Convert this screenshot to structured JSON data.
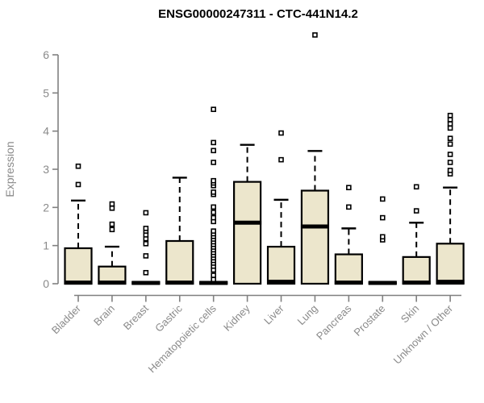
{
  "chart_data": {
    "type": "boxplot",
    "title": "ENSG00000247311 - CTC-441N14.2",
    "xlabel": "",
    "ylabel": "Expression",
    "ylim": [
      0,
      6
    ],
    "yticks": [
      0,
      1,
      2,
      3,
      4,
      5,
      6
    ],
    "grid": false,
    "legend": "none",
    "categories": [
      "Bladder",
      "Brain",
      "Breast",
      "Gastric",
      "Hematopoietic cells",
      "Kidney",
      "Liver",
      "Lung",
      "Pancreas",
      "Prostate",
      "Skin",
      "Unknown / Other"
    ],
    "series": [
      {
        "name": "Bladder",
        "q1": 0,
        "median": 0.03,
        "q3": 0.93,
        "whisker_low": 0,
        "whisker_high": 2.18,
        "outliers": [
          2.6,
          3.08
        ]
      },
      {
        "name": "Brain",
        "q1": 0,
        "median": 0.03,
        "q3": 0.45,
        "whisker_low": 0,
        "whisker_high": 0.97,
        "outliers": [
          1.42,
          1.56,
          1.98,
          2.09
        ]
      },
      {
        "name": "Breast",
        "q1": 0,
        "median": 0.02,
        "q3": 0.04,
        "whisker_low": 0,
        "whisker_high": 0.04,
        "outliers": [
          0.29,
          0.73,
          1.05,
          1.18,
          1.28,
          1.38,
          1.45,
          1.86
        ]
      },
      {
        "name": "Gastric",
        "q1": 0,
        "median": 0.03,
        "q3": 1.12,
        "whisker_low": 0,
        "whisker_high": 2.78,
        "outliers": []
      },
      {
        "name": "Hematopoietic cells",
        "q1": 0,
        "median": 0.02,
        "q3": 0.04,
        "whisker_low": 0,
        "whisker_high": 0.04,
        "outliers": [
          0.11,
          0.22,
          0.36,
          0.46,
          0.54,
          0.61,
          0.68,
          0.75,
          0.82,
          0.89,
          0.96,
          1.03,
          1.1,
          1.17,
          1.24,
          1.31,
          1.38,
          1.63,
          1.73,
          1.87,
          2.01,
          2.34,
          2.4,
          2.57,
          2.64,
          2.7,
          3.18,
          3.49,
          3.7,
          4.57
        ]
      },
      {
        "name": "Kidney",
        "q1": 0,
        "median": 1.6,
        "q3": 2.67,
        "whisker_low": 0,
        "whisker_high": 3.64,
        "outliers": []
      },
      {
        "name": "Liver",
        "q1": 0,
        "median": 0.05,
        "q3": 0.97,
        "whisker_low": 0,
        "whisker_high": 2.2,
        "outliers": [
          3.25,
          3.95
        ]
      },
      {
        "name": "Lung",
        "q1": 0,
        "median": 1.5,
        "q3": 2.44,
        "whisker_low": 0,
        "whisker_high": 3.48,
        "outliers": [
          6.52
        ]
      },
      {
        "name": "Pancreas",
        "q1": 0,
        "median": 0.03,
        "q3": 0.77,
        "whisker_low": 0,
        "whisker_high": 1.45,
        "outliers": [
          2.01,
          2.52
        ]
      },
      {
        "name": "Prostate",
        "q1": 0,
        "median": 0.02,
        "q3": 0.04,
        "whisker_low": 0,
        "whisker_high": 0.04,
        "outliers": [
          1.15,
          1.23,
          1.73,
          2.22
        ]
      },
      {
        "name": "Skin",
        "q1": 0,
        "median": 0.03,
        "q3": 0.7,
        "whisker_low": 0,
        "whisker_high": 1.6,
        "outliers": [
          1.91,
          2.54
        ]
      },
      {
        "name": "Unknown / Other",
        "q1": 0,
        "median": 0.05,
        "q3": 1.05,
        "whisker_low": 0,
        "whisker_high": 2.52,
        "outliers": [
          2.88,
          2.97,
          3.18,
          3.39,
          3.66,
          3.81,
          4.08,
          4.19,
          4.3,
          4.41
        ]
      }
    ],
    "colors": {
      "box_fill": "#ECE6CC",
      "box_stroke": "#000000",
      "median": "#000000",
      "whisker": "#000000",
      "outlier_stroke": "#000000",
      "outlier_fill": "#ffffff",
      "axis": "#808080",
      "tick_label": "#8a8a8a",
      "title": "#000000",
      "background": "#ffffff"
    }
  }
}
